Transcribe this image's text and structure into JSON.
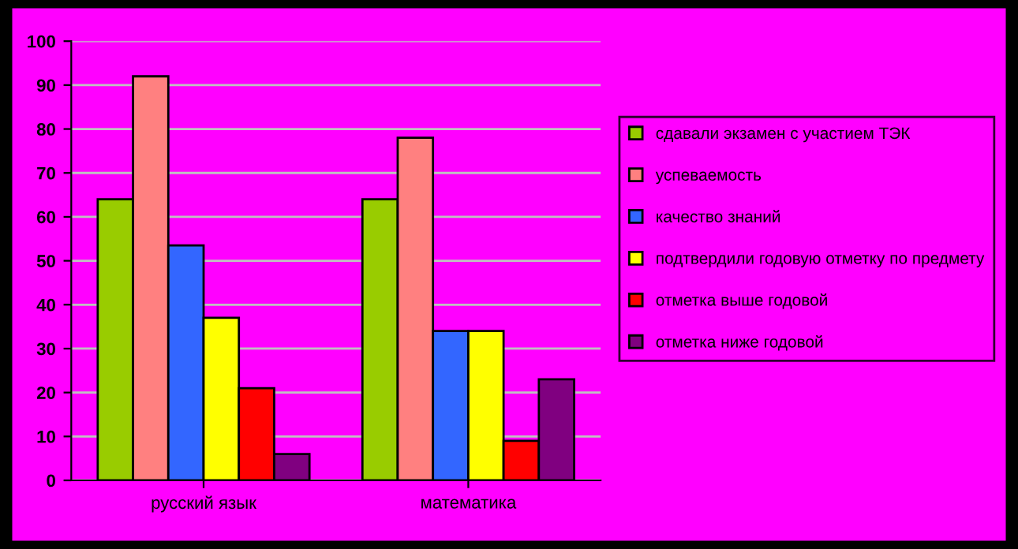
{
  "chart_data": {
    "type": "bar",
    "categories": [
      "русский язык",
      "математика"
    ],
    "series": [
      {
        "name": "сдавали экзамен с участием ТЭК",
        "color": "#99cc00",
        "values": [
          64,
          64
        ]
      },
      {
        "name": "успеваемость",
        "color": "#ff8080",
        "values": [
          92,
          78
        ]
      },
      {
        "name": "качество знаний",
        "color": "#3366ff",
        "values": [
          53.5,
          34
        ]
      },
      {
        "name": "подтвердили годовую отметку по предмету",
        "color": "#ffff00",
        "values": [
          37,
          34
        ]
      },
      {
        "name": "отметка выше годовой",
        "color": "#ff0000",
        "values": [
          21,
          9
        ]
      },
      {
        "name": "отметка ниже годовой",
        "color": "#800080",
        "values": [
          6,
          23
        ]
      }
    ],
    "ylim": [
      0,
      100
    ],
    "yticks": [
      0,
      10,
      20,
      30,
      40,
      50,
      60,
      70,
      80,
      90,
      100
    ],
    "grid": "y",
    "legend": "right"
  }
}
